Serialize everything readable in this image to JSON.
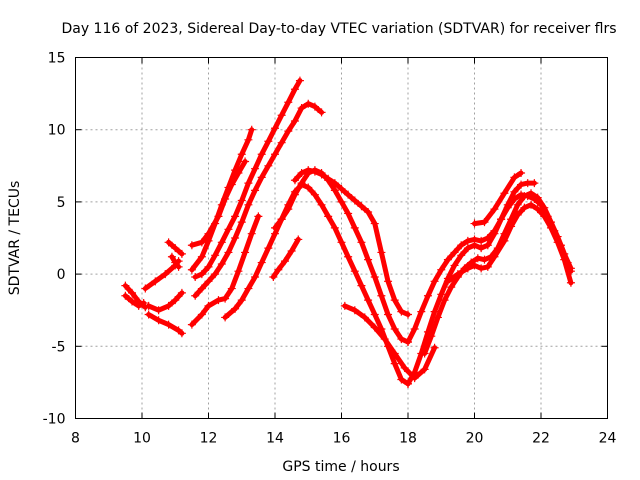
{
  "chart_data": {
    "type": "scatter",
    "title": "Day 116 of 2023, Sidereal Day-to-day VTEC variation (SDTVAR) for receiver flrs",
    "xlabel": "GPS time / hours",
    "ylabel": "SDTVAR / TECUs",
    "xlim": [
      8,
      24
    ],
    "ylim": [
      -10,
      15
    ],
    "xticks": [
      8,
      10,
      12,
      14,
      16,
      18,
      20,
      22,
      24
    ],
    "yticks": [
      -10,
      -5,
      0,
      5,
      10,
      15
    ],
    "grid": true,
    "color": "#ff0000",
    "marker": "plus",
    "series": [
      {
        "x": [
          9.5,
          9.7,
          9.9,
          10.1
        ],
        "y": [
          -0.8,
          -1.3,
          -1.9,
          -2.3
        ]
      },
      {
        "x": [
          9.5,
          9.7,
          9.9,
          10.05
        ],
        "y": [
          -1.5,
          -1.9,
          -2.2,
          -2.0
        ]
      },
      {
        "x": [
          10.2,
          10.5,
          10.8,
          11.1,
          11.2
        ],
        "y": [
          -2.8,
          -3.2,
          -3.5,
          -3.9,
          -4.1
        ]
      },
      {
        "x": [
          10.2,
          10.5,
          10.8,
          11.0,
          11.2
        ],
        "y": [
          -2.2,
          -2.5,
          -2.2,
          -1.8,
          -1.3
        ]
      },
      {
        "x": [
          10.1,
          10.4,
          10.7,
          11.0,
          11.1
        ],
        "y": [
          -1.0,
          -0.5,
          0.0,
          0.6,
          0.9
        ]
      },
      {
        "x": [
          10.8,
          11.0,
          11.2
        ],
        "y": [
          2.2,
          1.8,
          1.4
        ]
      },
      {
        "x": [
          10.9,
          11.0,
          11.1
        ],
        "y": [
          1.2,
          0.8,
          0.5
        ]
      },
      {
        "x": [
          11.5,
          11.8,
          12.0,
          12.2,
          12.4,
          12.6,
          12.8,
          13.0,
          13.2,
          13.3
        ],
        "y": [
          0.3,
          1.2,
          2.3,
          3.5,
          4.8,
          6.0,
          7.2,
          8.3,
          9.3,
          10.0
        ]
      },
      {
        "x": [
          11.5,
          11.8,
          12.0,
          12.3,
          12.5,
          12.7,
          12.9,
          13.1
        ],
        "y": [
          2.0,
          2.2,
          2.8,
          4.0,
          5.2,
          6.2,
          7.0,
          7.8
        ]
      },
      {
        "x": [
          11.6,
          11.8,
          12.0,
          12.2,
          12.4,
          12.6,
          12.8,
          13.0,
          13.2,
          13.4,
          13.6,
          13.8,
          14.0,
          14.2,
          14.4,
          14.6,
          14.75
        ],
        "y": [
          -0.2,
          0.0,
          0.5,
          1.3,
          2.2,
          3.1,
          4.0,
          5.1,
          6.3,
          7.3,
          8.3,
          9.2,
          10.1,
          11.0,
          11.9,
          12.8,
          13.4
        ]
      },
      {
        "x": [
          11.6,
          11.8,
          12.0,
          12.2,
          12.4,
          12.6,
          12.8,
          13.0,
          13.2,
          13.4,
          13.6,
          13.8,
          14.0,
          14.2,
          14.4,
          14.6,
          14.8,
          15.0,
          15.2,
          15.4
        ],
        "y": [
          -1.5,
          -1.0,
          -0.5,
          0.0,
          0.7,
          1.5,
          2.5,
          3.6,
          4.8,
          5.8,
          6.7,
          7.5,
          8.3,
          9.1,
          9.9,
          10.6,
          11.5,
          11.8,
          11.6,
          11.2
        ]
      },
      {
        "x": [
          11.5,
          11.8,
          12.0,
          12.3,
          12.5,
          12.7,
          12.9,
          13.1,
          13.3,
          13.5
        ],
        "y": [
          -3.5,
          -2.8,
          -2.2,
          -1.8,
          -1.7,
          -1.0,
          0.2,
          1.5,
          2.8,
          4.0
        ]
      },
      {
        "x": [
          12.5,
          12.8,
          13.0,
          13.2,
          13.4,
          13.6,
          13.8,
          14.0,
          14.2,
          14.4,
          14.6,
          14.8,
          15.0,
          15.2,
          15.4,
          15.6,
          15.8,
          16.0,
          16.2,
          16.4,
          16.6,
          16.8,
          17.0,
          17.2,
          17.4,
          17.6,
          17.8,
          18.0
        ],
        "y": [
          -3.0,
          -2.4,
          -1.8,
          -1.0,
          -0.2,
          0.8,
          1.8,
          2.8,
          3.8,
          4.8,
          5.7,
          6.2,
          6.0,
          5.5,
          4.8,
          4.0,
          3.2,
          2.2,
          1.2,
          0.2,
          -0.8,
          -1.8,
          -2.8,
          -3.8,
          -5.0,
          -6.2,
          -7.3,
          -7.6
        ]
      },
      {
        "x": [
          14.0,
          14.2,
          14.4,
          14.6,
          14.8,
          15.0,
          15.2,
          15.4,
          15.6,
          15.8,
          16.0,
          16.2,
          16.4,
          16.6,
          16.8,
          17.0,
          17.2,
          17.4,
          17.6,
          17.8,
          18.0
        ],
        "y": [
          3.2,
          3.8,
          4.5,
          5.5,
          6.3,
          7.0,
          7.2,
          7.0,
          6.5,
          5.8,
          5.0,
          4.2,
          3.2,
          2.2,
          1.0,
          -0.2,
          -1.5,
          -2.8,
          -3.8,
          -4.5,
          -4.7
        ]
      },
      {
        "x": [
          14.6,
          14.8,
          15.0,
          15.2,
          15.4,
          15.6,
          15.8,
          16.0,
          16.2,
          16.4,
          16.6,
          16.8,
          17.0,
          17.2,
          17.4,
          17.6,
          17.8,
          18.0
        ],
        "y": [
          6.5,
          7.0,
          7.2,
          7.1,
          6.9,
          6.6,
          6.3,
          5.9,
          5.5,
          5.1,
          4.7,
          4.3,
          3.5,
          1.5,
          -0.5,
          -1.8,
          -2.6,
          -2.8
        ]
      },
      {
        "x": [
          13.95,
          14.1,
          14.3,
          14.5,
          14.7
        ],
        "y": [
          -0.2,
          0.3,
          0.9,
          1.6,
          2.4
        ]
      },
      {
        "x": [
          16.1,
          16.4,
          16.7,
          17.0,
          17.3,
          17.6,
          17.9,
          18.2,
          18.5,
          18.8
        ],
        "y": [
          -2.2,
          -2.5,
          -3.0,
          -3.7,
          -4.5,
          -5.5,
          -6.5,
          -7.2,
          -6.6,
          -5.1
        ]
      },
      {
        "x": [
          18.0,
          18.2,
          18.4,
          18.6,
          18.8,
          19.0,
          19.2,
          19.4,
          19.6,
          19.8,
          20.0,
          20.2,
          20.4,
          20.6,
          20.8,
          21.0,
          21.2,
          21.4,
          21.6,
          21.8,
          22.0,
          22.2,
          22.4,
          22.6,
          22.8,
          22.9
        ],
        "y": [
          -4.7,
          -3.8,
          -2.6,
          -1.5,
          -0.5,
          0.3,
          1.0,
          1.5,
          2.0,
          2.3,
          2.4,
          2.3,
          2.5,
          3.0,
          3.8,
          4.6,
          5.2,
          5.5,
          5.4,
          5.2,
          4.8,
          4.0,
          3.0,
          2.0,
          0.8,
          0.2
        ]
      },
      {
        "x": [
          18.0,
          18.2,
          18.4,
          18.6,
          18.8,
          19.0,
          19.2,
          19.4,
          19.6,
          19.8,
          20.0,
          20.2,
          20.4,
          20.6,
          20.8,
          21.0,
          21.2,
          21.4,
          21.6,
          21.8
        ],
        "y": [
          -7.6,
          -6.8,
          -5.5,
          -4.0,
          -2.6,
          -1.4,
          -0.3,
          0.6,
          1.3,
          1.8,
          2.0,
          1.8,
          2.0,
          2.8,
          3.8,
          4.8,
          5.7,
          6.2,
          6.3,
          6.3
        ]
      },
      {
        "x": [
          18.5,
          18.7,
          18.9,
          19.1,
          19.3,
          19.5,
          19.7,
          19.9,
          20.1,
          20.3,
          20.5,
          20.7,
          20.9,
          21.1,
          21.3,
          21.5,
          21.7,
          21.9,
          22.1,
          22.3,
          22.5,
          22.7,
          22.9
        ],
        "y": [
          -5.5,
          -4.3,
          -3.0,
          -1.8,
          -0.9,
          -0.2,
          0.4,
          0.8,
          1.1,
          1.0,
          1.2,
          1.8,
          2.8,
          3.8,
          4.8,
          5.4,
          5.6,
          5.3,
          4.6,
          3.6,
          2.6,
          1.4,
          0.4
        ]
      },
      {
        "x": [
          19.2,
          19.5,
          19.8,
          20.0,
          20.2,
          20.4,
          20.6,
          20.9,
          21.1,
          21.3,
          21.5,
          21.7,
          21.9,
          22.1,
          22.3,
          22.5,
          22.7,
          22.9
        ],
        "y": [
          -0.5,
          0.0,
          0.4,
          0.6,
          0.4,
          0.5,
          1.2,
          2.3,
          3.3,
          4.1,
          4.6,
          4.8,
          4.5,
          4.0,
          3.2,
          2.2,
          1.0,
          -0.6
        ]
      },
      {
        "x": [
          20.0,
          20.3,
          20.6,
          20.9,
          21.2,
          21.4
        ],
        "y": [
          3.5,
          3.6,
          4.5,
          5.6,
          6.7,
          7.0
        ]
      }
    ]
  }
}
